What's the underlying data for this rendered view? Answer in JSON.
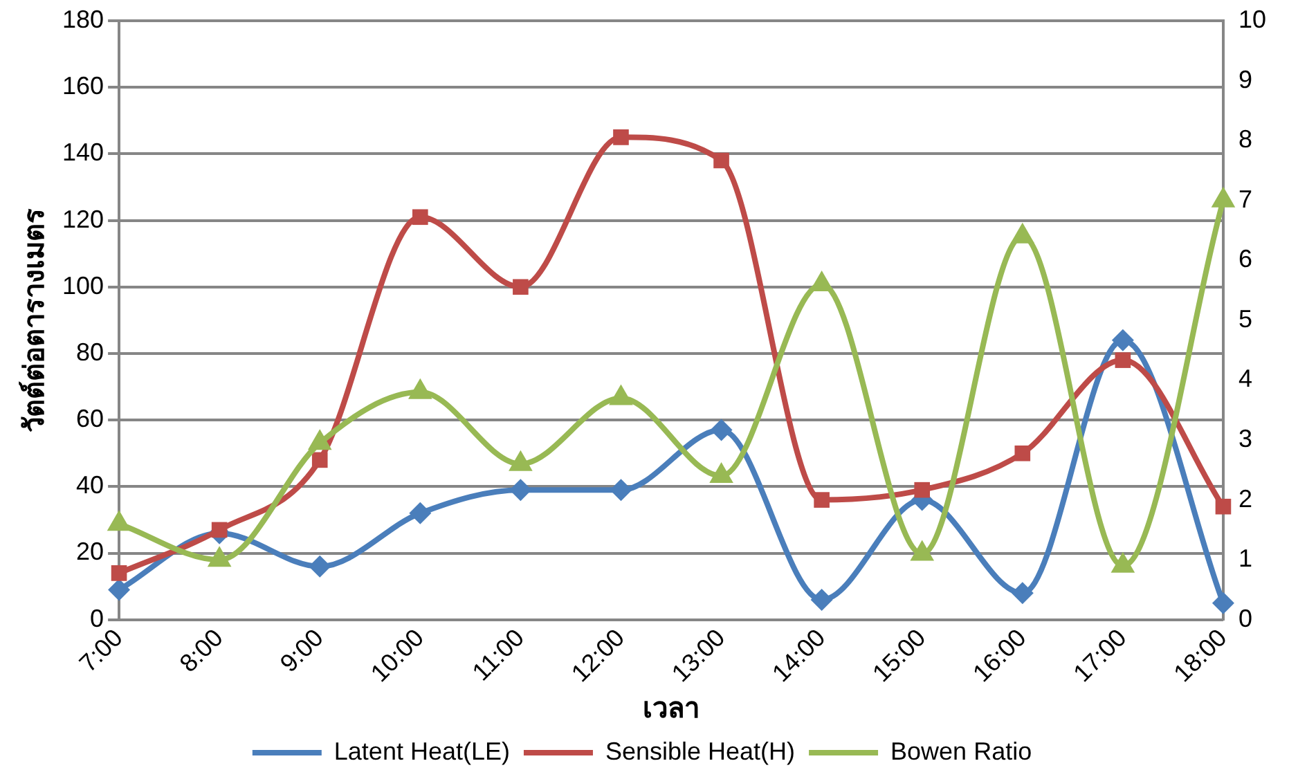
{
  "chart_data": {
    "type": "line",
    "xlabel": "เวลา",
    "ylabel": "วัตต์ต่อตารางเมตร",
    "categories": [
      "7:00",
      "8:00",
      "9:00",
      "10:00",
      "11:00",
      "12:00",
      "13:00",
      "14:00",
      "15:00",
      "16:00",
      "17:00",
      "18:00"
    ],
    "series": [
      {
        "name": "Latent Heat(LE)",
        "color": "#4a7ebb",
        "marker": "diamond",
        "values": [
          9,
          26,
          16,
          32,
          39,
          39,
          57,
          6,
          36,
          8,
          84,
          5
        ]
      },
      {
        "name": "Sensible Heat(H)",
        "color": "#be4b48",
        "marker": "square",
        "values": [
          14,
          27,
          48,
          121,
          100,
          145,
          138,
          36,
          39,
          50,
          78,
          34
        ]
      },
      {
        "name": "Bowen Ratio",
        "color": "#98b954",
        "marker": "triangle",
        "axis": "y2",
        "values": [
          1.6,
          1.0,
          2.95,
          3.8,
          2.6,
          3.7,
          2.4,
          5.6,
          1.1,
          6.4,
          0.9,
          7.0
        ]
      }
    ],
    "ylim": [
      0,
      180
    ],
    "yticks": [
      0,
      20,
      40,
      60,
      80,
      100,
      120,
      140,
      160,
      180
    ],
    "y2lim": [
      0,
      10
    ],
    "y2ticks": [
      0,
      1,
      2,
      3,
      4,
      5,
      6,
      7,
      8,
      9,
      10
    ],
    "grid": "y",
    "legend": "bottom",
    "line_style": "solid"
  }
}
